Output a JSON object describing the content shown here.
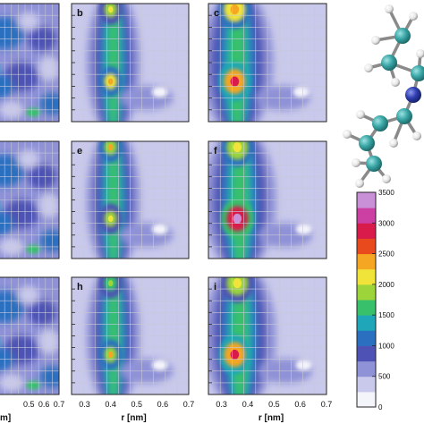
{
  "chart_data": {
    "type": "heatmap",
    "grid": true,
    "x_axis": {
      "label": "r [nm]",
      "range": [
        0.25,
        0.7
      ],
      "ticks": [
        0.3,
        0.4,
        0.5,
        0.6,
        0.7
      ],
      "tick_labels": [
        "0.3",
        "0.4",
        "0.5",
        "0.6",
        "0.7"
      ]
    },
    "colorbar": {
      "range": [
        0,
        3500
      ],
      "ticks": [
        0,
        500,
        1000,
        1500,
        2000,
        2500,
        3000,
        3500
      ],
      "tick_labels": [
        "0",
        "500",
        "1000",
        "1500",
        "2000",
        "2500",
        "3000",
        "3500"
      ],
      "colors": [
        "#f4f4fb",
        "#c9c9ec",
        "#8f92d6",
        "#4d52b4",
        "#2b6fc0",
        "#1fa6b8",
        "#39c06b",
        "#9cd43a",
        "#f0e33a",
        "#f5a623",
        "#e8491d",
        "#d81b4a",
        "#cc3fa3",
        "#c990d8"
      ]
    },
    "panels": [
      {
        "letter": "",
        "column": 0,
        "row": 0,
        "peaks": []
      },
      {
        "letter": "b",
        "column": 1,
        "row": 0,
        "peaks": [
          {
            "r": 0.4,
            "intensity": 1800
          },
          {
            "r": 0.4,
            "intensity": 2200
          }
        ]
      },
      {
        "letter": "c",
        "column": 2,
        "row": 0,
        "peaks": [
          {
            "r": 0.35,
            "intensity": 2100
          },
          {
            "r": 0.35,
            "intensity": 2500
          }
        ]
      },
      {
        "letter": "",
        "column": 0,
        "row": 1,
        "peaks": []
      },
      {
        "letter": "e",
        "column": 1,
        "row": 1,
        "peaks": [
          {
            "r": 0.4,
            "intensity": 2000
          },
          {
            "r": 0.4,
            "intensity": 1800
          }
        ]
      },
      {
        "letter": "f",
        "column": 2,
        "row": 1,
        "peaks": [
          {
            "r": 0.36,
            "intensity": 1900
          },
          {
            "r": 0.36,
            "intensity": 3000
          }
        ]
      },
      {
        "letter": "",
        "column": 0,
        "row": 2,
        "peaks": []
      },
      {
        "letter": "h",
        "column": 1,
        "row": 2,
        "peaks": [
          {
            "r": 0.4,
            "intensity": 1700
          },
          {
            "r": 0.4,
            "intensity": 2000
          }
        ]
      },
      {
        "letter": "i",
        "column": 2,
        "row": 2,
        "peaks": [
          {
            "r": 0.36,
            "intensity": 1800
          },
          {
            "r": 0.35,
            "intensity": 2500
          }
        ]
      }
    ],
    "left_column_x_ticks": [
      "0.5",
      "0.6",
      "0.7"
    ],
    "left_column_x_label_fragment": "m]",
    "molecule_colors": {
      "carbon": "#3aa6a6",
      "nitrogen": "#2f3fb0",
      "hydrogen": "#f2f2f2",
      "bond": "#8a8a8a"
    }
  }
}
